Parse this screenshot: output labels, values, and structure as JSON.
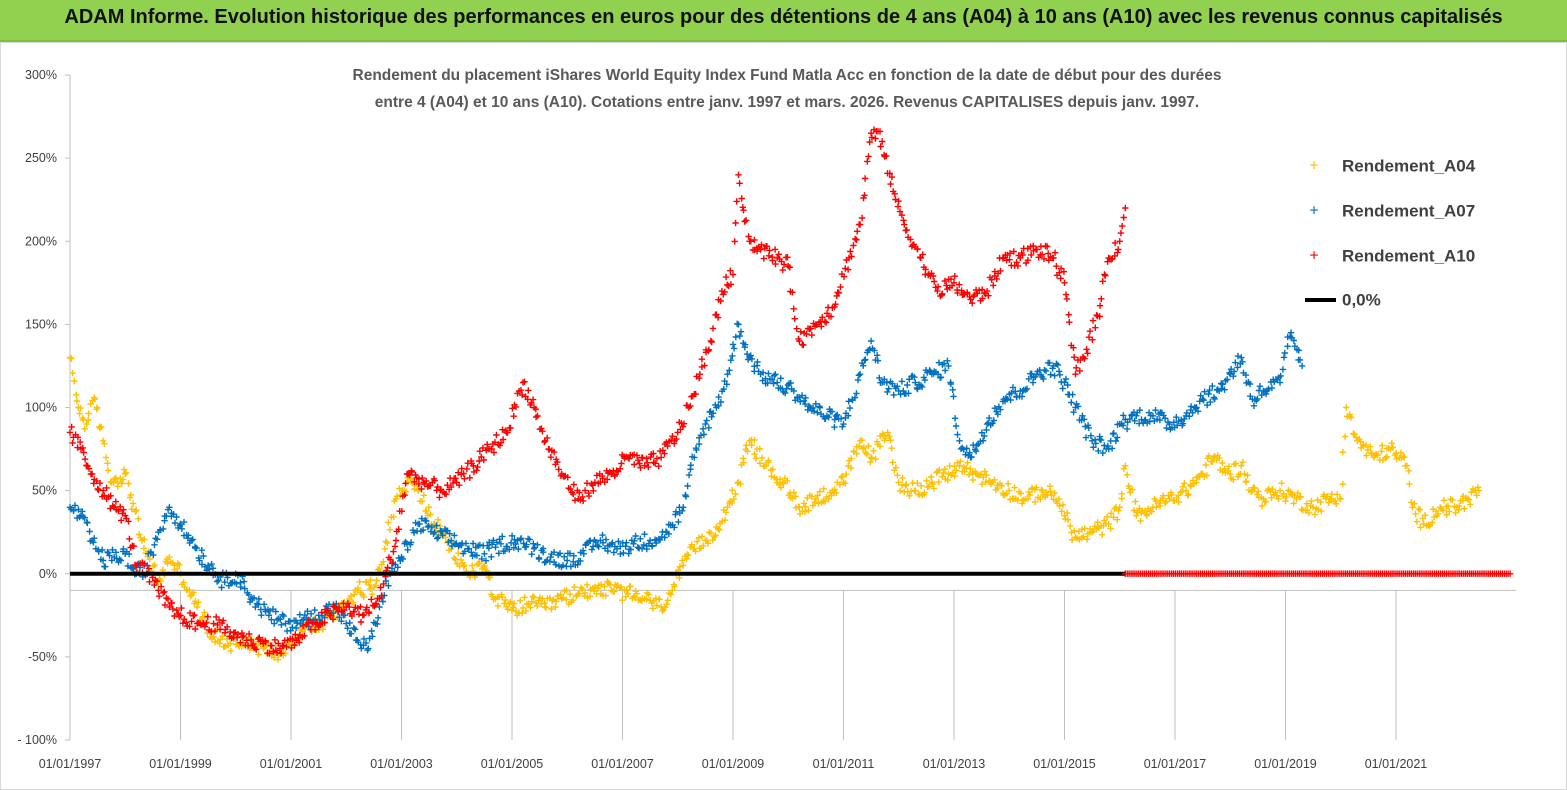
{
  "banner": {
    "title": "ADAM Informe. Evolution historique des performances en euros pour des détentions de 4 ans (A04) à 10 ans (A10) avec les revenus connus capitalisés"
  },
  "colors": {
    "banner": "#92d050",
    "A04": "#ffc000",
    "A07": "#0070c0",
    "A10": "#ff0000",
    "zero_line": "#000000"
  },
  "chart_data": {
    "type": "scatter",
    "title_lines": [
      "Rendement du placement iShares World Equity Index Fund Matla Acc en fonction de la date de début pour des durées",
      "entre 4 (A04) et 10 ans (A10). Cotations entre janv. 1997 et mars. 2026. Revenus CAPITALISES depuis janv. 1997."
    ],
    "x_tick_labels": [
      "01/01/1997",
      "01/01/1999",
      "01/01/2001",
      "01/01/2003",
      "01/01/2005",
      "01/01/2007",
      "01/01/2009",
      "01/01/2011",
      "01/01/2013",
      "01/01/2015",
      "01/01/2017",
      "01/01/2019",
      "01/01/2021"
    ],
    "x_range": [
      1997.0,
      2023.1
    ],
    "y_tick_labels": [
      "300%",
      "250%",
      "200%",
      "150%",
      "100%",
      "50%",
      "0%",
      "-50%",
      "- 100%"
    ],
    "y_range": [
      -100,
      300
    ],
    "legend_position": "top-right",
    "grid": false,
    "legend": {
      "A04": "Rendement_A04",
      "A07": "Rendement_A07",
      "A10": "Rendement_A10",
      "zero": "0,0%"
    },
    "series": [
      {
        "name": "Rendement_A04",
        "key": "A04",
        "x": [
          1997.0,
          1997.15,
          1997.3,
          1997.45,
          1997.6,
          1997.75,
          1998.0,
          1998.3,
          1998.6,
          1998.8,
          1999.0,
          1999.3,
          1999.6,
          1999.9,
          2000.2,
          2000.5,
          2000.8,
          2001.0,
          2001.3,
          2001.6,
          2001.9,
          2002.2,
          2002.5,
          2002.7,
          2002.9,
          2003.1,
          2003.3,
          2003.6,
          2003.9,
          2004.2,
          2004.5,
          2004.7,
          2005.0,
          2005.3,
          2005.6,
          2005.9,
          2006.2,
          2006.5,
          2006.8,
          2007.1,
          2007.4,
          2007.7,
          2007.9,
          2008.1,
          2008.3,
          2008.5,
          2008.7,
          2008.9,
          2009.1,
          2009.3,
          2009.6,
          2009.9,
          2010.2,
          2010.5,
          2010.8,
          2011.0,
          2011.3,
          2011.5,
          2011.8,
          2012.0,
          2012.3,
          2012.6,
          2012.9,
          2013.1,
          2013.4,
          2013.7,
          2014.0,
          2014.3,
          2014.6,
          2014.9,
          2015.0,
          2015.2,
          2015.5,
          2015.8,
          2016.0,
          2016.1,
          2016.3,
          2016.6,
          2016.9,
          2017.2,
          2017.5,
          2017.7,
          2018.0,
          2018.2,
          2018.4,
          2018.6,
          2018.9,
          2019.2,
          2019.5,
          2019.8,
          2020.0,
          2020.1,
          2020.3,
          2020.6,
          2020.9,
          2021.2,
          2021.3,
          2021.5,
          2021.8,
          2022.1,
          2022.3,
          2022.5
        ],
        "y": [
          130,
          100,
          90,
          105,
          80,
          55,
          60,
          20,
          -5,
          10,
          0,
          -20,
          -38,
          -42,
          -40,
          -45,
          -48,
          -40,
          -32,
          -30,
          -20,
          -10,
          -8,
          15,
          45,
          55,
          50,
          30,
          15,
          0,
          5,
          -15,
          -22,
          -18,
          -20,
          -15,
          -12,
          -8,
          -10,
          -12,
          -15,
          -20,
          -10,
          5,
          15,
          20,
          28,
          40,
          55,
          80,
          65,
          55,
          40,
          45,
          50,
          55,
          80,
          70,
          85,
          55,
          50,
          55,
          60,
          65,
          60,
          55,
          50,
          45,
          50,
          45,
          35,
          22,
          25,
          30,
          40,
          65,
          35,
          40,
          45,
          50,
          60,
          70,
          60,
          65,
          50,
          45,
          50,
          45,
          40,
          45,
          45,
          100,
          80,
          70,
          75,
          65,
          40,
          30,
          40,
          40,
          45,
          50
        ]
      },
      {
        "name": "Rendement_A07",
        "key": "A07",
        "x": [
          1997.0,
          1997.2,
          1997.4,
          1997.6,
          1997.8,
          1998.0,
          1998.2,
          1998.4,
          1998.6,
          1998.8,
          1999.0,
          1999.2,
          1999.5,
          1999.8,
          2000.0,
          2000.3,
          2000.6,
          2000.9,
          2001.2,
          2001.5,
          2001.8,
          2002.0,
          2002.2,
          2002.4,
          2002.6,
          2002.8,
          2003.0,
          2003.3,
          2003.6,
          2003.9,
          2004.2,
          2004.5,
          2004.8,
          2005.1,
          2005.4,
          2005.7,
          2006.0,
          2006.3,
          2006.6,
          2006.9,
          2007.2,
          2007.5,
          2007.8,
          2008.1,
          2008.3,
          2008.5,
          2008.7,
          2008.9,
          2009.1,
          2009.3,
          2009.5,
          2009.8,
          2010.1,
          2010.4,
          2010.7,
          2011.0,
          2011.3,
          2011.5,
          2011.7,
          2012.0,
          2012.3,
          2012.6,
          2012.9,
          2013.1,
          2013.3,
          2013.6,
          2013.9,
          2014.2,
          2014.5,
          2014.8,
          2015.0,
          2015.2,
          2015.5,
          2015.8,
          2016.0,
          2016.3,
          2016.6,
          2016.9,
          2017.2,
          2017.5,
          2017.8,
          2018.0,
          2018.2,
          2018.4,
          2018.6,
          2018.9,
          2019.1,
          2019.3
        ],
        "y": [
          40,
          35,
          20,
          8,
          10,
          12,
          0,
          5,
          25,
          40,
          30,
          20,
          5,
          -5,
          0,
          -15,
          -25,
          -30,
          -28,
          -25,
          -20,
          -30,
          -40,
          -45,
          -20,
          0,
          10,
          30,
          25,
          20,
          15,
          12,
          18,
          20,
          15,
          10,
          8,
          12,
          20,
          15,
          18,
          20,
          25,
          40,
          70,
          90,
          100,
          120,
          150,
          130,
          120,
          115,
          110,
          100,
          95,
          90,
          120,
          140,
          115,
          110,
          115,
          120,
          125,
          80,
          70,
          90,
          105,
          110,
          120,
          125,
          115,
          100,
          80,
          75,
          90,
          95,
          95,
          90,
          95,
          105,
          110,
          120,
          130,
          105,
          110,
          115,
          145,
          125
        ]
      },
      {
        "name": "Rendement_A10",
        "key": "A10",
        "x": [
          1997.0,
          1997.2,
          1997.4,
          1997.6,
          1997.8,
          1998.0,
          1998.2,
          1998.4,
          1998.6,
          1998.8,
          1999.0,
          1999.3,
          1999.6,
          1999.9,
          2000.2,
          2000.5,
          2000.8,
          2001.1,
          2001.4,
          2001.7,
          2002.0,
          2002.3,
          2002.6,
          2002.9,
          2003.1,
          2003.4,
          2003.7,
          2004.0,
          2004.3,
          2004.6,
          2004.9,
          2005.2,
          2005.4,
          2005.6,
          2005.9,
          2006.2,
          2006.5,
          2006.8,
          2007.1,
          2007.4,
          2007.7,
          2008.0,
          2008.2,
          2008.4,
          2008.6,
          2008.8,
          2009.0,
          2009.1,
          2009.3,
          2009.5,
          2009.8,
          2010.0,
          2010.2,
          2010.5,
          2010.8,
          2011.1,
          2011.3,
          2011.5,
          2011.7,
          2011.9,
          2012.1,
          2012.4,
          2012.7,
          2013.0,
          2013.3,
          2013.6,
          2013.9,
          2014.2,
          2014.5,
          2014.8,
          2015.0,
          2015.2,
          2015.4,
          2015.6,
          2015.8,
          2016.0,
          2016.1
        ],
        "y": [
          85,
          75,
          60,
          50,
          40,
          35,
          5,
          0,
          -10,
          -20,
          -25,
          -30,
          -30,
          -35,
          -40,
          -42,
          -45,
          -40,
          -30,
          -25,
          -20,
          -25,
          -15,
          20,
          60,
          55,
          50,
          55,
          65,
          75,
          85,
          115,
          100,
          80,
          60,
          45,
          55,
          60,
          70,
          65,
          70,
          85,
          100,
          120,
          140,
          170,
          180,
          240,
          200,
          195,
          190,
          185,
          140,
          150,
          160,
          190,
          210,
          265,
          260,
          230,
          210,
          190,
          170,
          175,
          165,
          170,
          190,
          190,
          195,
          190,
          175,
          120,
          135,
          155,
          190,
          200,
          220
        ]
      }
    ],
    "zero_line": {
      "name": "0,0%",
      "value": 0
    },
    "placeholder_band": {
      "x_start": 2016.1,
      "x_end": 2023.1,
      "value": 0
    }
  }
}
